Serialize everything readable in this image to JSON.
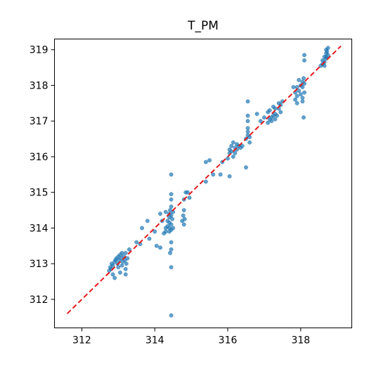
{
  "chart_data": {
    "type": "scatter",
    "title": "T_PM",
    "xlabel": "",
    "ylabel": "",
    "xlim": [
      311.25,
      319.4
    ],
    "ylim": [
      311.2,
      319.3
    ],
    "xticks": [
      312,
      314,
      316,
      318
    ],
    "yticks": [
      312,
      313,
      314,
      315,
      316,
      317,
      318,
      319
    ],
    "grid": false,
    "legend": "none",
    "marker_color": "#1f77b4",
    "reference_line": {
      "style": "dashed",
      "color": "#e41a1c",
      "from": [
        311.6,
        311.6
      ],
      "to": [
        319.1,
        319.1
      ]
    },
    "points": [
      [
        312.75,
        312.8
      ],
      [
        312.78,
        312.9
      ],
      [
        312.8,
        312.85
      ],
      [
        312.82,
        313.0
      ],
      [
        312.85,
        312.95
      ],
      [
        312.9,
        313.05
      ],
      [
        312.92,
        313.1
      ],
      [
        312.95,
        313.15
      ],
      [
        312.98,
        313.0
      ],
      [
        313.0,
        313.2
      ],
      [
        313.02,
        313.1
      ],
      [
        313.05,
        313.25
      ],
      [
        313.08,
        313.15
      ],
      [
        313.1,
        313.3
      ],
      [
        313.12,
        313.05
      ],
      [
        313.15,
        313.2
      ],
      [
        313.18,
        313.1
      ],
      [
        313.2,
        313.3
      ],
      [
        313.22,
        313.0
      ],
      [
        313.25,
        313.15
      ],
      [
        312.9,
        312.6
      ],
      [
        313.0,
        312.9
      ],
      [
        313.05,
        312.75
      ],
      [
        313.1,
        312.95
      ],
      [
        313.2,
        312.85
      ],
      [
        313.2,
        312.7
      ],
      [
        313.3,
        313.4
      ],
      [
        312.85,
        312.7
      ],
      [
        313.5,
        313.6
      ],
      [
        313.6,
        313.55
      ],
      [
        313.65,
        314.0
      ],
      [
        313.8,
        314.2
      ],
      [
        313.85,
        313.7
      ],
      [
        314.0,
        313.9
      ],
      [
        314.05,
        313.5
      ],
      [
        314.15,
        314.4
      ],
      [
        314.15,
        313.45
      ],
      [
        314.25,
        313.85
      ],
      [
        314.3,
        314.0
      ],
      [
        314.3,
        313.9
      ],
      [
        314.35,
        314.2
      ],
      [
        314.35,
        314.05
      ],
      [
        314.4,
        314.4
      ],
      [
        314.4,
        314.3
      ],
      [
        314.4,
        314.15
      ],
      [
        314.4,
        314.0
      ],
      [
        314.4,
        313.9
      ],
      [
        314.42,
        314.5
      ],
      [
        314.42,
        313.3
      ],
      [
        314.45,
        314.6
      ],
      [
        314.45,
        314.35
      ],
      [
        314.45,
        314.1
      ],
      [
        314.45,
        313.95
      ],
      [
        314.45,
        314.8
      ],
      [
        314.45,
        314.95
      ],
      [
        314.45,
        315.5
      ],
      [
        314.45,
        313.6
      ],
      [
        314.45,
        313.4
      ],
      [
        314.45,
        312.9
      ],
      [
        314.45,
        311.55
      ],
      [
        314.48,
        314.25
      ],
      [
        314.5,
        314.45
      ],
      [
        314.5,
        314.0
      ],
      [
        314.3,
        314.45
      ],
      [
        314.2,
        314.2
      ],
      [
        314.75,
        314.2
      ],
      [
        314.78,
        314.35
      ],
      [
        314.8,
        314.1
      ],
      [
        314.82,
        314.25
      ],
      [
        314.8,
        314.5
      ],
      [
        314.8,
        314.8
      ],
      [
        314.85,
        315.0
      ],
      [
        314.9,
        315.0
      ],
      [
        314.95,
        314.85
      ],
      [
        315.4,
        315.3
      ],
      [
        315.4,
        315.85
      ],
      [
        315.5,
        315.9
      ],
      [
        315.6,
        315.5
      ],
      [
        315.8,
        315.5
      ],
      [
        315.85,
        315.85
      ],
      [
        316.0,
        315.95
      ],
      [
        316.05,
        316.2
      ],
      [
        316.05,
        315.45
      ],
      [
        316.05,
        316.1
      ],
      [
        316.1,
        316.3
      ],
      [
        316.1,
        316.15
      ],
      [
        316.15,
        316.0
      ],
      [
        316.15,
        316.4
      ],
      [
        316.2,
        316.25
      ],
      [
        316.2,
        316.1
      ],
      [
        316.25,
        316.35
      ],
      [
        316.25,
        316.2
      ],
      [
        316.3,
        316.3
      ],
      [
        316.35,
        316.25
      ],
      [
        316.4,
        316.3
      ],
      [
        316.5,
        315.7
      ],
      [
        316.5,
        316.5
      ],
      [
        316.55,
        316.6
      ],
      [
        316.55,
        316.7
      ],
      [
        316.55,
        316.8
      ],
      [
        316.55,
        317.0
      ],
      [
        316.55,
        317.15
      ],
      [
        316.55,
        317.55
      ],
      [
        316.6,
        316.55
      ],
      [
        316.6,
        316.4
      ],
      [
        316.8,
        317.2
      ],
      [
        316.9,
        317.0
      ],
      [
        317.0,
        317.1
      ],
      [
        317.1,
        317.25
      ],
      [
        317.15,
        317.05
      ],
      [
        317.15,
        317.3
      ],
      [
        317.2,
        317.1
      ],
      [
        317.25,
        317.15
      ],
      [
        317.25,
        317.4
      ],
      [
        317.3,
        317.2
      ],
      [
        317.3,
        317.35
      ],
      [
        317.35,
        317.15
      ],
      [
        317.4,
        317.5
      ],
      [
        317.4,
        317.35
      ],
      [
        317.45,
        317.45
      ],
      [
        317.45,
        317.25
      ],
      [
        317.5,
        317.55
      ],
      [
        317.1,
        316.95
      ],
      [
        317.2,
        317.0
      ],
      [
        317.3,
        317.05
      ],
      [
        317.8,
        317.95
      ],
      [
        317.85,
        317.8
      ],
      [
        317.85,
        317.6
      ],
      [
        317.9,
        317.7
      ],
      [
        317.9,
        317.5
      ],
      [
        317.9,
        317.95
      ],
      [
        317.95,
        317.85
      ],
      [
        318.0,
        318.0
      ],
      [
        318.0,
        317.75
      ],
      [
        318.05,
        317.65
      ],
      [
        318.05,
        318.1
      ],
      [
        318.05,
        317.55
      ],
      [
        318.05,
        317.95
      ],
      [
        318.08,
        318.2
      ],
      [
        318.08,
        317.1
      ],
      [
        318.1,
        318.85
      ],
      [
        318.1,
        318.7
      ],
      [
        318.1,
        318.05
      ],
      [
        318.1,
        317.8
      ],
      [
        317.95,
        318.15
      ],
      [
        318.55,
        318.55
      ],
      [
        318.6,
        318.6
      ],
      [
        318.6,
        318.7
      ],
      [
        318.65,
        318.65
      ],
      [
        318.65,
        318.55
      ],
      [
        318.7,
        318.8
      ],
      [
        318.7,
        318.9
      ],
      [
        318.7,
        318.75
      ],
      [
        318.72,
        318.95
      ],
      [
        318.75,
        319.05
      ],
      [
        318.75,
        318.85
      ],
      [
        318.7,
        319.0
      ],
      [
        318.65,
        318.8
      ]
    ]
  }
}
